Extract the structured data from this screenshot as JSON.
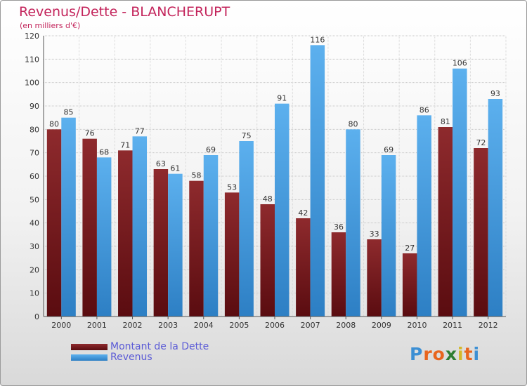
{
  "chart_data": {
    "type": "bar",
    "title": "Revenus/Dette - BLANCHERUPT",
    "subtitle": "(en milliers d'€)",
    "categories": [
      "2000",
      "2001",
      "2002",
      "2003",
      "2004",
      "2005",
      "2006",
      "2007",
      "2008",
      "2009",
      "2010",
      "2011",
      "2012"
    ],
    "series": [
      {
        "name": "Montant de la Dette",
        "values": [
          80,
          76,
          71,
          63,
          58,
          53,
          48,
          42,
          36,
          33,
          27,
          81,
          72
        ],
        "color": "#7a1f22"
      },
      {
        "name": "Revenus",
        "values": [
          85,
          68,
          77,
          61,
          69,
          75,
          91,
          116,
          80,
          69,
          86,
          106,
          93
        ],
        "color": "#4aa0e0"
      }
    ],
    "ylim": [
      0,
      120
    ],
    "yticks": [
      0,
      10,
      20,
      30,
      40,
      50,
      60,
      70,
      80,
      90,
      100,
      110,
      120
    ],
    "grid": true,
    "legend_position": "bottom-left"
  },
  "logo": {
    "letters": [
      "P",
      "r",
      "o",
      "x",
      "i",
      "t",
      "i"
    ],
    "colors": [
      "#3c8fd4",
      "#e8651e",
      "#e8651e",
      "#2e7d32",
      "#d4b82a",
      "#e8651e",
      "#3c8fd4"
    ]
  }
}
